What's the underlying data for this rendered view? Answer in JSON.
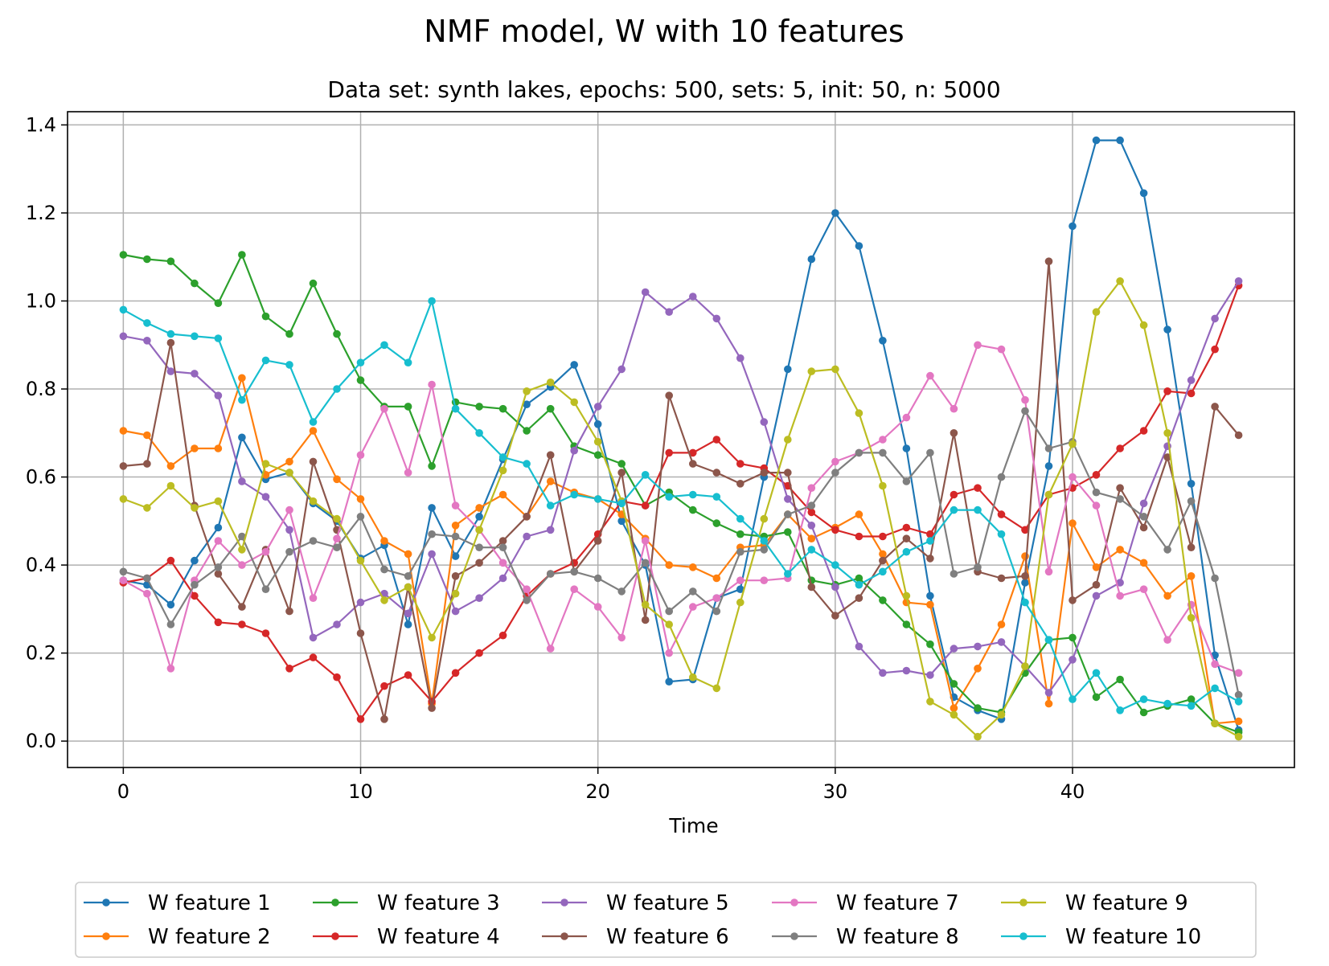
{
  "chart_data": {
    "type": "line",
    "title": "NMF model, W with 10 features",
    "subtitle": "Data set: synth lakes, epochs: 500, sets: 5, init: 50, n: 5000",
    "xlabel": "Time",
    "ylabel": "",
    "xlim": [
      -2.35,
      49.35
    ],
    "ylim": [
      -0.06,
      1.43
    ],
    "xticks": [
      0,
      10,
      20,
      30,
      40
    ],
    "xtick_labels": [
      "0",
      "10",
      "20",
      "30",
      "40"
    ],
    "yticks": [
      0.0,
      0.2,
      0.4,
      0.6,
      0.8,
      1.0,
      1.2,
      1.4
    ],
    "ytick_labels": [
      "0.0",
      "0.2",
      "0.4",
      "0.6",
      "0.8",
      "1.0",
      "1.2",
      "1.4"
    ],
    "grid": true,
    "legend_position": "bottom",
    "x": [
      0,
      1,
      2,
      3,
      4,
      5,
      6,
      7,
      8,
      9,
      10,
      11,
      12,
      13,
      14,
      15,
      16,
      17,
      18,
      19,
      20,
      21,
      22,
      23,
      24,
      25,
      26,
      27,
      28,
      29,
      30,
      31,
      32,
      33,
      34,
      35,
      36,
      37,
      38,
      39,
      40,
      41,
      42,
      43,
      44,
      45,
      46,
      47
    ],
    "series": [
      {
        "name": "W feature 1",
        "color": "#1f77b4",
        "values": [
          0.365,
          0.355,
          0.31,
          0.41,
          0.485,
          0.69,
          0.595,
          0.61,
          0.54,
          0.5,
          0.415,
          0.445,
          0.265,
          0.53,
          0.42,
          0.51,
          0.64,
          0.765,
          0.805,
          0.855,
          0.72,
          0.5,
          0.4,
          0.135,
          0.14,
          0.325,
          0.345,
          0.6,
          0.845,
          1.095,
          1.2,
          1.125,
          0.91,
          0.665,
          0.33,
          0.1,
          0.07,
          0.05,
          0.36,
          0.625,
          1.17,
          1.365,
          1.365,
          1.245,
          0.935,
          0.585,
          0.195,
          0.025
        ]
      },
      {
        "name": "W feature 2",
        "color": "#ff7f0e",
        "values": [
          0.705,
          0.695,
          0.625,
          0.665,
          0.665,
          0.825,
          0.605,
          0.635,
          0.705,
          0.595,
          0.55,
          0.455,
          0.425,
          0.085,
          0.49,
          0.53,
          0.56,
          0.51,
          0.59,
          0.565,
          0.55,
          0.515,
          0.46,
          0.4,
          0.395,
          0.37,
          0.44,
          0.445,
          0.515,
          0.46,
          0.485,
          0.515,
          0.425,
          0.315,
          0.31,
          0.075,
          0.165,
          0.265,
          0.42,
          0.085,
          0.495,
          0.395,
          0.435,
          0.405,
          0.33,
          0.375,
          0.04,
          0.045
        ]
      },
      {
        "name": "W feature 3",
        "color": "#2ca02c",
        "values": [
          1.105,
          1.095,
          1.09,
          1.04,
          0.995,
          1.105,
          0.965,
          0.925,
          1.04,
          0.925,
          0.82,
          0.76,
          0.76,
          0.625,
          0.77,
          0.76,
          0.755,
          0.705,
          0.755,
          0.67,
          0.65,
          0.63,
          0.535,
          0.565,
          0.525,
          0.495,
          0.47,
          0.465,
          0.475,
          0.365,
          0.355,
          0.37,
          0.32,
          0.265,
          0.22,
          0.13,
          0.075,
          0.065,
          0.155,
          0.23,
          0.235,
          0.1,
          0.14,
          0.065,
          0.08,
          0.095,
          0.04,
          0.02
        ]
      },
      {
        "name": "W feature 4",
        "color": "#d62728",
        "values": [
          0.36,
          0.37,
          0.41,
          0.33,
          0.27,
          0.265,
          0.245,
          0.165,
          0.19,
          0.145,
          0.05,
          0.125,
          0.15,
          0.09,
          0.155,
          0.2,
          0.24,
          0.33,
          0.38,
          0.405,
          0.47,
          0.545,
          0.535,
          0.655,
          0.655,
          0.685,
          0.63,
          0.62,
          0.58,
          0.52,
          0.48,
          0.465,
          0.465,
          0.485,
          0.47,
          0.56,
          0.575,
          0.515,
          0.48,
          0.56,
          0.575,
          0.605,
          0.665,
          0.705,
          0.795,
          0.79,
          0.89,
          1.035
        ]
      },
      {
        "name": "W feature 5",
        "color": "#9467bd",
        "values": [
          0.92,
          0.91,
          0.84,
          0.835,
          0.785,
          0.59,
          0.555,
          0.48,
          0.235,
          0.265,
          0.315,
          0.335,
          0.29,
          0.425,
          0.295,
          0.325,
          0.37,
          0.465,
          0.48,
          0.66,
          0.76,
          0.845,
          1.02,
          0.975,
          1.01,
          0.96,
          0.87,
          0.725,
          0.55,
          0.49,
          0.35,
          0.215,
          0.155,
          0.16,
          0.15,
          0.21,
          0.215,
          0.225,
          0.17,
          0.11,
          0.185,
          0.33,
          0.36,
          0.54,
          0.67,
          0.82,
          0.96,
          1.045
        ]
      },
      {
        "name": "W feature 6",
        "color": "#8c564b",
        "values": [
          0.625,
          0.63,
          0.905,
          0.535,
          0.38,
          0.305,
          0.435,
          0.295,
          0.635,
          0.48,
          0.245,
          0.05,
          0.35,
          0.075,
          0.375,
          0.405,
          0.455,
          0.51,
          0.65,
          0.385,
          0.455,
          0.61,
          0.275,
          0.785,
          0.63,
          0.61,
          0.585,
          0.61,
          0.61,
          0.35,
          0.285,
          0.325,
          0.41,
          0.46,
          0.415,
          0.7,
          0.385,
          0.37,
          0.375,
          1.09,
          0.32,
          0.355,
          0.575,
          0.485,
          0.645,
          0.44,
          0.76,
          0.695
        ]
      },
      {
        "name": "W feature 7",
        "color": "#e377c2",
        "values": [
          0.365,
          0.335,
          0.165,
          0.365,
          0.455,
          0.4,
          0.43,
          0.525,
          0.325,
          0.46,
          0.65,
          0.755,
          0.61,
          0.81,
          0.535,
          0.48,
          0.405,
          0.345,
          0.21,
          0.345,
          0.305,
          0.235,
          0.455,
          0.2,
          0.305,
          0.325,
          0.365,
          0.365,
          0.37,
          0.575,
          0.635,
          0.655,
          0.685,
          0.735,
          0.83,
          0.755,
          0.9,
          0.89,
          0.775,
          0.385,
          0.6,
          0.535,
          0.33,
          0.345,
          0.23,
          0.31,
          0.175,
          0.155
        ]
      },
      {
        "name": "W feature 8",
        "color": "#7f7f7f",
        "values": [
          0.385,
          0.37,
          0.265,
          0.355,
          0.395,
          0.465,
          0.345,
          0.43,
          0.455,
          0.44,
          0.51,
          0.39,
          0.375,
          0.47,
          0.465,
          0.44,
          0.44,
          0.32,
          0.38,
          0.385,
          0.37,
          0.34,
          0.405,
          0.295,
          0.34,
          0.295,
          0.43,
          0.435,
          0.515,
          0.535,
          0.61,
          0.655,
          0.655,
          0.59,
          0.655,
          0.38,
          0.395,
          0.6,
          0.75,
          0.665,
          0.68,
          0.565,
          0.55,
          0.51,
          0.435,
          0.545,
          0.37,
          0.105
        ]
      },
      {
        "name": "W feature 9",
        "color": "#bcbd22",
        "values": [
          0.55,
          0.53,
          0.58,
          0.53,
          0.545,
          0.435,
          0.63,
          0.61,
          0.545,
          0.505,
          0.41,
          0.32,
          0.35,
          0.235,
          0.335,
          0.48,
          0.615,
          0.795,
          0.815,
          0.77,
          0.68,
          0.545,
          0.31,
          0.265,
          0.145,
          0.12,
          0.315,
          0.505,
          0.685,
          0.84,
          0.845,
          0.745,
          0.58,
          0.33,
          0.09,
          0.06,
          0.01,
          0.06,
          0.17,
          0.56,
          0.675,
          0.975,
          1.045,
          0.945,
          0.7,
          0.28,
          0.04,
          0.01
        ]
      },
      {
        "name": "W feature 10",
        "color": "#17becf",
        "values": [
          0.98,
          0.95,
          0.925,
          0.92,
          0.915,
          0.775,
          0.865,
          0.855,
          0.725,
          0.8,
          0.86,
          0.9,
          0.86,
          1.0,
          0.755,
          0.7,
          0.645,
          0.63,
          0.535,
          0.56,
          0.55,
          0.54,
          0.605,
          0.555,
          0.56,
          0.555,
          0.505,
          0.455,
          0.38,
          0.435,
          0.4,
          0.355,
          0.385,
          0.43,
          0.455,
          0.525,
          0.525,
          0.47,
          0.315,
          0.23,
          0.095,
          0.155,
          0.07,
          0.095,
          0.085,
          0.08,
          0.12,
          0.09
        ]
      }
    ]
  }
}
